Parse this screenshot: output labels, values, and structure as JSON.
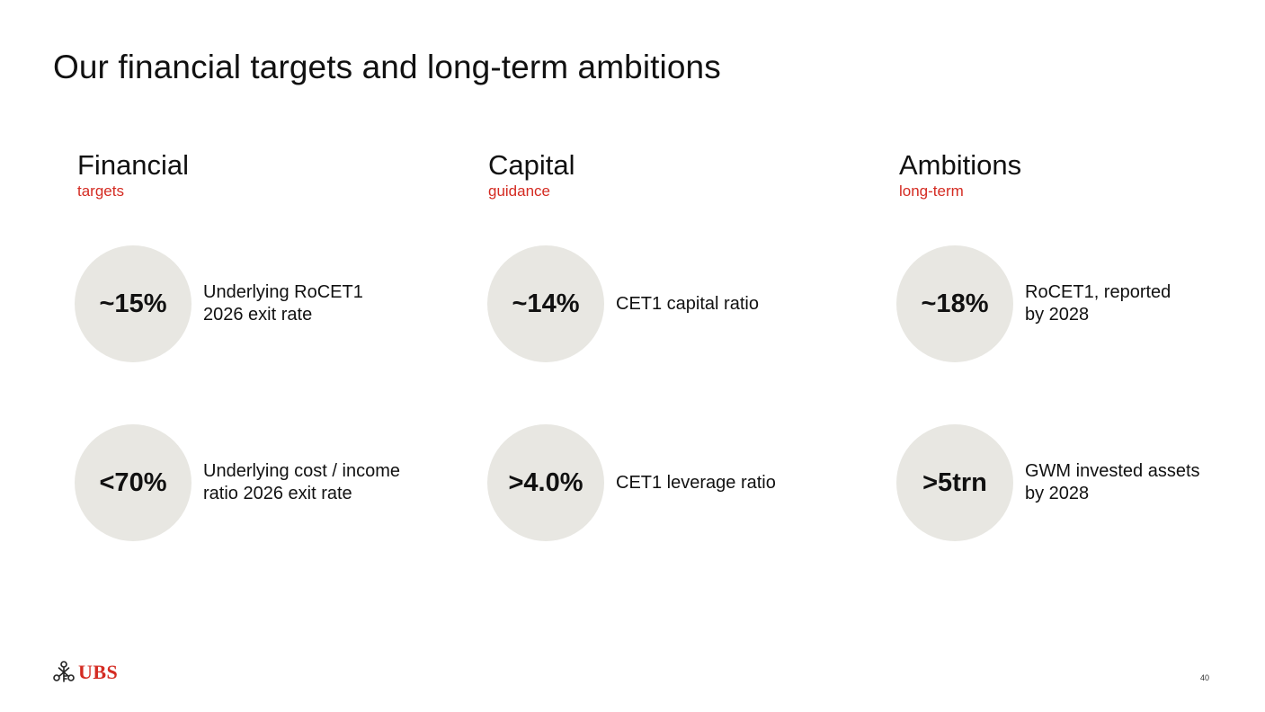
{
  "slide": {
    "title": "Our financial targets and long-term ambitions",
    "page_number": "40"
  },
  "columns": [
    {
      "heading": "Financial",
      "subheading": "targets",
      "metrics": [
        {
          "value": "~15%",
          "label": "Underlying RoCET1\n2026 exit rate"
        },
        {
          "value": "<70%",
          "label": "Underlying cost / income\nratio 2026 exit rate"
        }
      ]
    },
    {
      "heading": "Capital",
      "subheading": "guidance",
      "metrics": [
        {
          "value": "~14%",
          "label": "CET1 capital ratio"
        },
        {
          "value": ">4.0%",
          "label": "CET1 leverage ratio"
        }
      ]
    },
    {
      "heading": "Ambitions",
      "subheading": "long-term",
      "metrics": [
        {
          "value": "~18%",
          "label": "RoCET1, reported\nby 2028"
        },
        {
          "value": ">5trn",
          "label": "GWM invested assets\nby 2028"
        }
      ]
    }
  ],
  "logo": {
    "text": "UBS",
    "icon": "ubs-keys-icon"
  },
  "colors": {
    "accent": "#d42b22",
    "bubble": "#e8e7e2",
    "text": "#111111"
  }
}
